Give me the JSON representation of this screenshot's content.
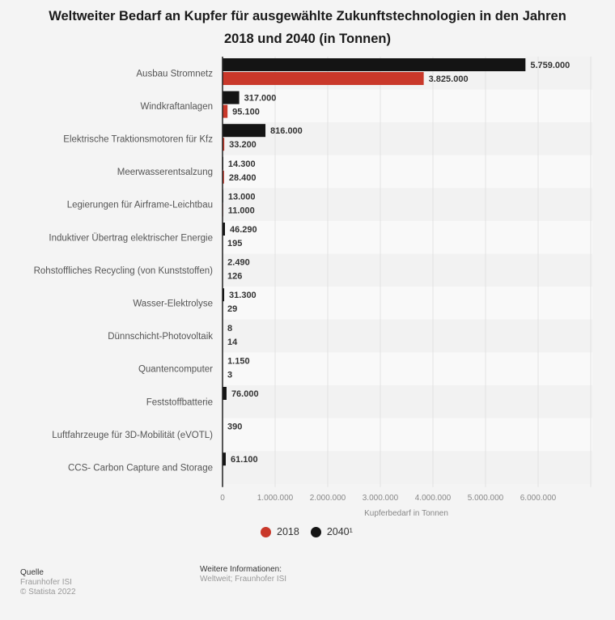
{
  "title_line1": "Weltweiter Bedarf an Kupfer für ausgewählte Zukunftstechnologien in den Jahren",
  "title_line2": "2018 und 2040 (in Tonnen)",
  "colors": {
    "series_2018": "#c9382a",
    "series_2040": "#141414"
  },
  "legend": [
    {
      "label": "2018",
      "color": "#c9382a"
    },
    {
      "label": "2040¹",
      "color": "#141414"
    }
  ],
  "footer": {
    "source_heading": "Quelle",
    "source": "Fraunhofer ISI",
    "copyright": "© Statista 2022",
    "info_heading": "Weitere Informationen:",
    "info": "Weltweit; Fraunhofer ISI"
  },
  "chart_data": {
    "type": "bar",
    "orientation": "horizontal",
    "title": "Weltweiter Bedarf an Kupfer für ausgewählte Zukunftstechnologien in den Jahren 2018 und 2040 (in Tonnen)",
    "xlabel": "Kupferbedarf in Tonnen",
    "ylabel": "",
    "xlim": [
      0,
      7000000
    ],
    "x_ticks": [
      0,
      1000000,
      2000000,
      3000000,
      4000000,
      5000000,
      6000000,
      7000000
    ],
    "x_tick_labels": [
      "0",
      "1.000.000",
      "2.000.000",
      "3.000.000",
      "4.000.000",
      "5.000.000",
      "6.000.000",
      ""
    ],
    "grid": true,
    "legend_position": "bottom",
    "categories": [
      "Ausbau Stromnetz",
      "Windkraftanlagen",
      "Elektrische Traktionsmotoren für Kfz",
      "Meerwasserentsalzung",
      "Legierungen für Airframe-Leichtbau",
      "Induktiver Übertrag elektrischer Energie",
      "Rohstoffliches Recycling (von Kunststoffen)",
      "Wasser-Elektrolyse",
      "Dünnschicht-Photovoltaik",
      "Quantencomputer",
      "Feststoffbatterie",
      "Luftfahrzeuge für 3D-Mobilität (eVOTL)",
      "CCS- Carbon Capture and Storage"
    ],
    "series": [
      {
        "name": "2040¹",
        "color": "#141414",
        "values": [
          5759000,
          317000,
          816000,
          14300,
          13000,
          46290,
          2490,
          31300,
          8,
          1150,
          76000,
          390,
          61100
        ],
        "labels": [
          "5.759.000",
          "317.000",
          "816.000",
          "14.300",
          "13.000",
          "46.290",
          "2.490",
          "31.300",
          "8",
          "1.150",
          "76.000",
          "390",
          "61.100"
        ]
      },
      {
        "name": "2018",
        "color": "#c9382a",
        "values": [
          3825000,
          95100,
          33200,
          28400,
          11000,
          195,
          126,
          29,
          14,
          3,
          null,
          null,
          null
        ],
        "labels": [
          "3.825.000",
          "95.100",
          "33.200",
          "28.400",
          "11.000",
          "195",
          "126",
          "29",
          "14",
          "3",
          "",
          "",
          ""
        ]
      }
    ]
  }
}
